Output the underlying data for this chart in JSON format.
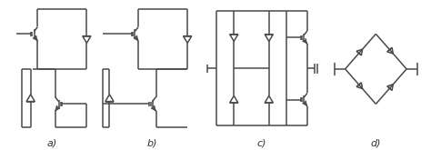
{
  "background": "#ffffff",
  "line_color": "#4a4a4a",
  "label_color": "#333333",
  "lw": 1.1,
  "fig_w": 4.74,
  "fig_h": 1.65,
  "labels": [
    "a)",
    "b)",
    "c)",
    "d)"
  ]
}
